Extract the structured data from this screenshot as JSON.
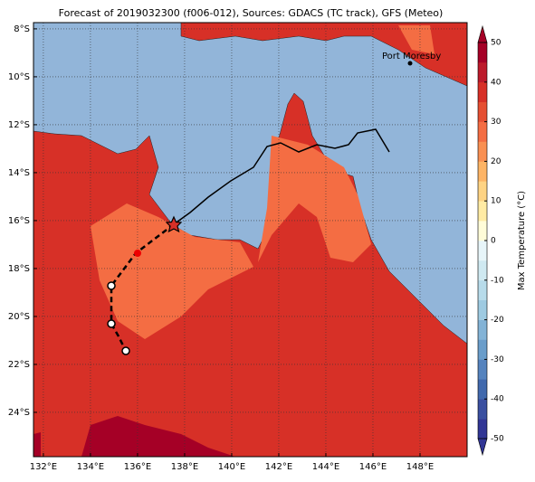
{
  "map": {
    "title": "Forecast of 2019032300 (f006-012), Sources: GDACS (TC track), GFS (Meteo)",
    "xlim": [
      131.58,
      150
    ],
    "ylim": [
      -25.85,
      -7.74
    ],
    "xticks": [
      {
        "value": 132,
        "label": "132°E"
      },
      {
        "value": 134,
        "label": "134°E"
      },
      {
        "value": 136,
        "label": "136°E"
      },
      {
        "value": 138,
        "label": "138°E"
      },
      {
        "value": 140,
        "label": "140°E"
      },
      {
        "value": 142,
        "label": "142°E"
      },
      {
        "value": 144,
        "label": "144°E"
      },
      {
        "value": 146,
        "label": "146°E"
      },
      {
        "value": 148,
        "label": "148°E"
      }
    ],
    "yticks": [
      {
        "value": -8,
        "label": "8°S"
      },
      {
        "value": -10,
        "label": "10°S"
      },
      {
        "value": -12,
        "label": "12°S"
      },
      {
        "value": -14,
        "label": "14°S"
      },
      {
        "value": -16,
        "label": "16°S"
      },
      {
        "value": -18,
        "label": "18°S"
      },
      {
        "value": -20,
        "label": "20°S"
      },
      {
        "value": -22,
        "label": "22°S"
      },
      {
        "value": -24,
        "label": "24°S"
      }
    ],
    "grid": true,
    "place_label": "Port Moresby",
    "colorbar": {
      "label": "Max Temperature (°C)",
      "lim": [
        -50,
        50
      ],
      "ticks": [
        -50,
        -40,
        -30,
        -20,
        -10,
        0,
        10,
        20,
        30,
        40,
        50
      ],
      "colors": [
        "#313695",
        "#3a4fa0",
        "#4169ad",
        "#5583be",
        "#6a9dca",
        "#83b3d6",
        "#9ecae1",
        "#b7dbea",
        "#cfe9f1",
        "#e7f5f9",
        "#fffcd8",
        "#ffeba4",
        "#fed383",
        "#fdb465",
        "#f99052",
        "#f46d43",
        "#e54f32",
        "#d73027",
        "#bc1a2b",
        "#a50026"
      ]
    }
  }
}
